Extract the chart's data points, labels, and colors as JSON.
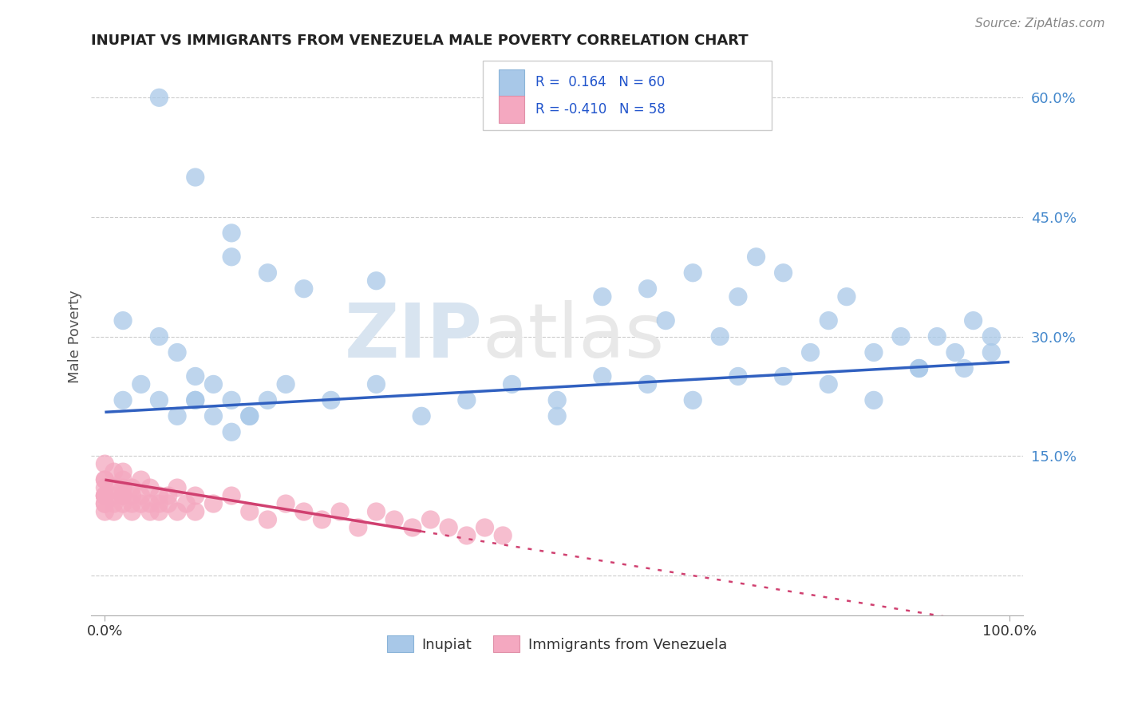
{
  "title": "INUPIAT VS IMMIGRANTS FROM VENEZUELA MALE POVERTY CORRELATION CHART",
  "source": "Source: ZipAtlas.com",
  "ylabel": "Male Poverty",
  "r_inupiat": 0.164,
  "n_inupiat": 60,
  "r_venezuela": -0.41,
  "n_venezuela": 58,
  "inupiat_color": "#a8c8e8",
  "venezuela_color": "#f4a8c0",
  "inupiat_line_color": "#3060c0",
  "venezuela_line_color": "#d04070",
  "background_color": "#ffffff",
  "watermark_zip": "ZIP",
  "watermark_atlas": "atlas",
  "ytick_vals": [
    0.0,
    0.15,
    0.3,
    0.45,
    0.6
  ],
  "ytick_labels": [
    "",
    "15.0%",
    "30.0%",
    "45.0%",
    "60.0%"
  ],
  "inupiat_x": [
    0.06,
    0.1,
    0.14,
    0.14,
    0.18,
    0.22,
    0.3,
    0.5,
    0.55,
    0.6,
    0.62,
    0.65,
    0.68,
    0.7,
    0.72,
    0.75,
    0.78,
    0.8,
    0.82,
    0.85,
    0.88,
    0.9,
    0.92,
    0.94,
    0.96,
    0.98,
    0.02,
    0.06,
    0.08,
    0.1,
    0.1,
    0.12,
    0.14,
    0.16,
    0.02,
    0.04,
    0.06,
    0.08,
    0.1,
    0.12,
    0.14,
    0.16,
    0.18,
    0.2,
    0.25,
    0.3,
    0.35,
    0.4,
    0.45,
    0.5,
    0.55,
    0.6,
    0.65,
    0.7,
    0.75,
    0.8,
    0.85,
    0.9,
    0.95,
    0.98
  ],
  "inupiat_y": [
    0.6,
    0.5,
    0.43,
    0.4,
    0.38,
    0.36,
    0.37,
    0.2,
    0.35,
    0.36,
    0.32,
    0.38,
    0.3,
    0.35,
    0.4,
    0.38,
    0.28,
    0.32,
    0.35,
    0.28,
    0.3,
    0.26,
    0.3,
    0.28,
    0.32,
    0.3,
    0.32,
    0.3,
    0.28,
    0.25,
    0.22,
    0.24,
    0.22,
    0.2,
    0.22,
    0.24,
    0.22,
    0.2,
    0.22,
    0.2,
    0.18,
    0.2,
    0.22,
    0.24,
    0.22,
    0.24,
    0.2,
    0.22,
    0.24,
    0.22,
    0.25,
    0.24,
    0.22,
    0.25,
    0.25,
    0.24,
    0.22,
    0.26,
    0.26,
    0.28
  ],
  "venezuela_x": [
    0.0,
    0.0,
    0.0,
    0.0,
    0.0,
    0.0,
    0.0,
    0.0,
    0.0,
    0.0,
    0.01,
    0.01,
    0.01,
    0.01,
    0.01,
    0.02,
    0.02,
    0.02,
    0.02,
    0.02,
    0.02,
    0.03,
    0.03,
    0.03,
    0.03,
    0.04,
    0.04,
    0.04,
    0.05,
    0.05,
    0.05,
    0.06,
    0.06,
    0.06,
    0.07,
    0.07,
    0.08,
    0.08,
    0.09,
    0.1,
    0.1,
    0.12,
    0.14,
    0.16,
    0.18,
    0.2,
    0.22,
    0.24,
    0.26,
    0.28,
    0.3,
    0.32,
    0.34,
    0.36,
    0.38,
    0.4,
    0.42,
    0.44
  ],
  "venezuela_y": [
    0.14,
    0.12,
    0.1,
    0.08,
    0.1,
    0.12,
    0.09,
    0.11,
    0.09,
    0.1,
    0.13,
    0.11,
    0.09,
    0.1,
    0.08,
    0.12,
    0.1,
    0.09,
    0.11,
    0.13,
    0.1,
    0.11,
    0.09,
    0.1,
    0.08,
    0.12,
    0.1,
    0.09,
    0.11,
    0.09,
    0.08,
    0.1,
    0.09,
    0.08,
    0.1,
    0.09,
    0.11,
    0.08,
    0.09,
    0.1,
    0.08,
    0.09,
    0.1,
    0.08,
    0.07,
    0.09,
    0.08,
    0.07,
    0.08,
    0.06,
    0.08,
    0.07,
    0.06,
    0.07,
    0.06,
    0.05,
    0.06,
    0.05
  ]
}
